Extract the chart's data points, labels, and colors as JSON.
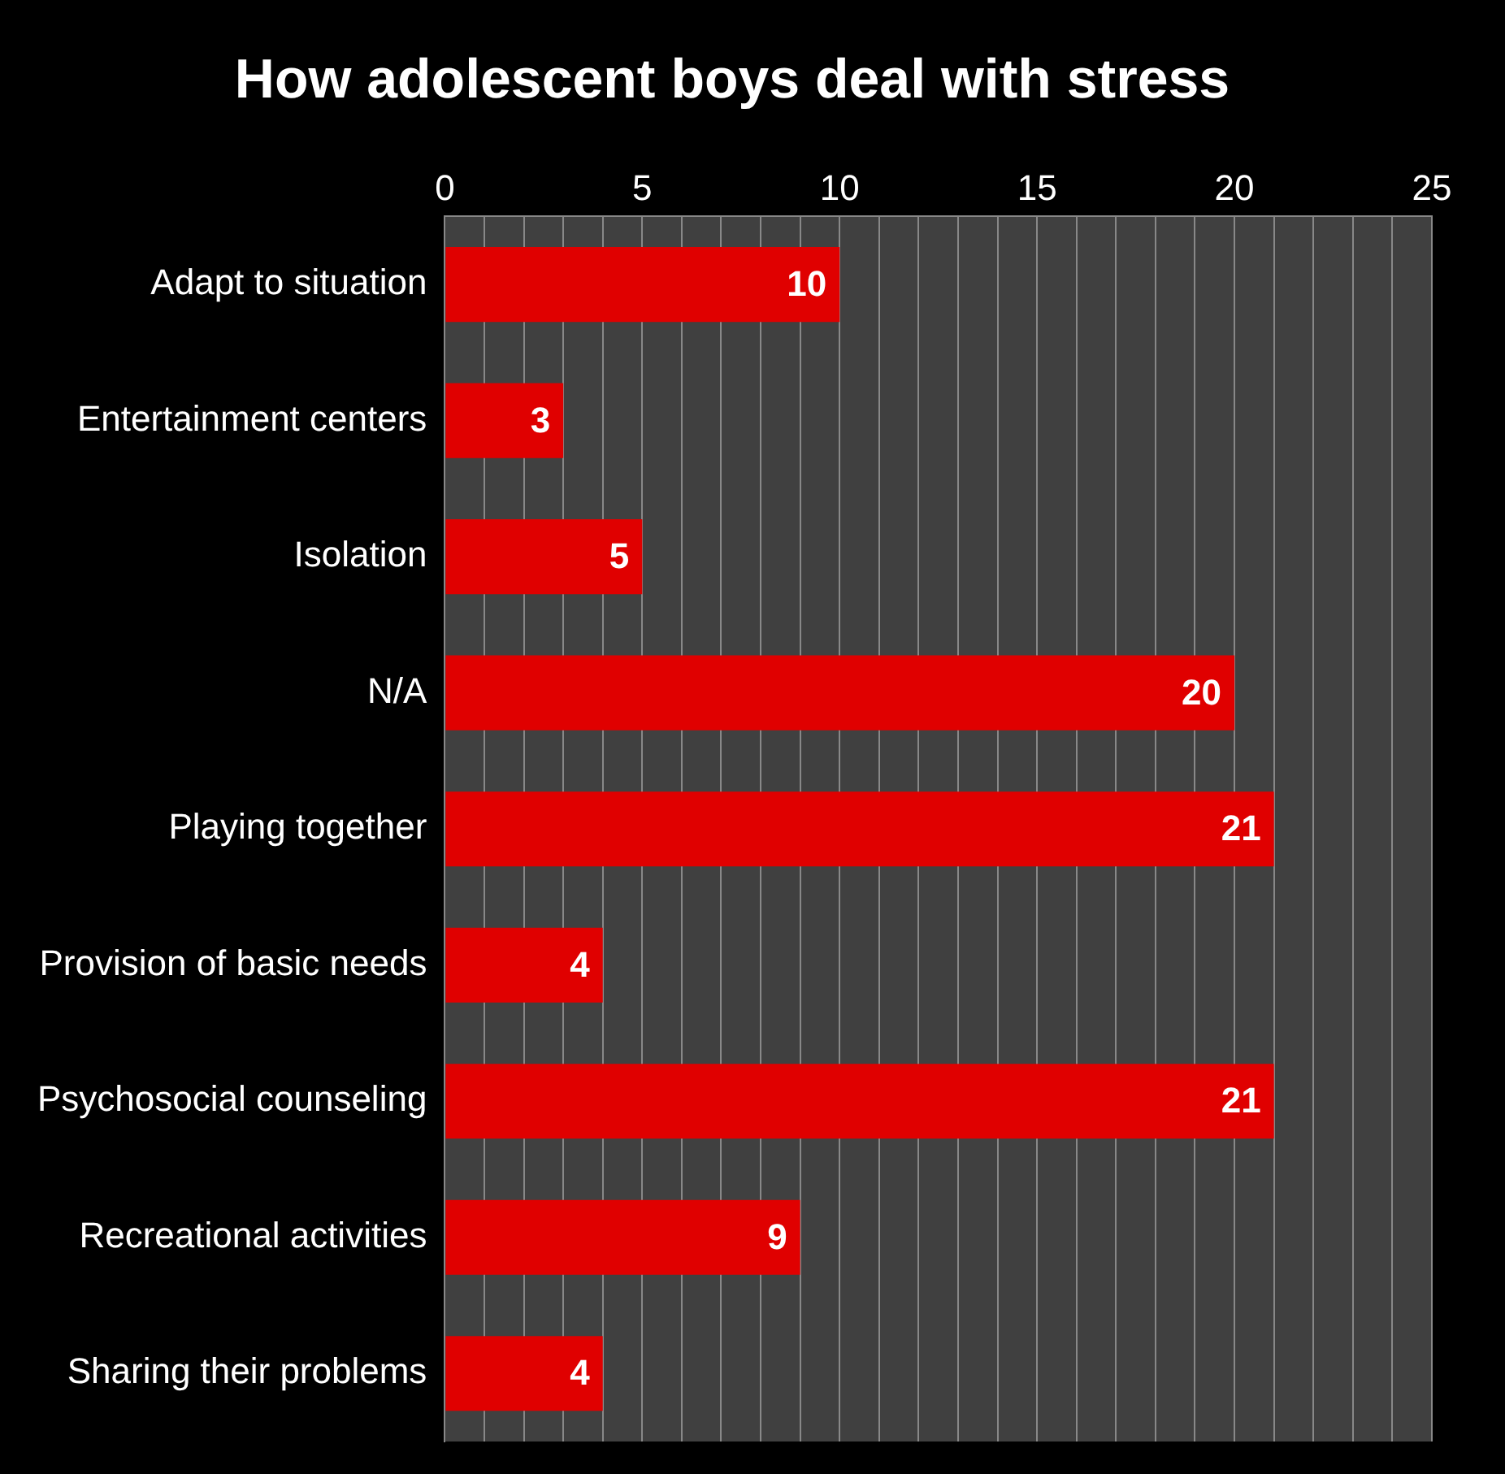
{
  "chart_data": {
    "type": "bar",
    "orientation": "horizontal",
    "title": "How adolescent boys deal with stress",
    "categories": [
      "Adapt to situation",
      "Entertainment centers",
      "Isolation",
      "N/A",
      "Playing together",
      "Provision of basic needs",
      "Psychosocial counseling",
      "Recreational activities",
      "Sharing their problems"
    ],
    "values": [
      10,
      3,
      5,
      20,
      21,
      4,
      21,
      9,
      4
    ],
    "color": "#e00000",
    "data_labels": true,
    "grid": "x",
    "xlim": [
      0,
      25
    ],
    "xticks": [
      0,
      {
        "value": 1,
        "label": null
      },
      {
        "value": 2,
        "label": null
      },
      {
        "value": 3,
        "label": null
      },
      {
        "value": 4,
        "label": null
      },
      5,
      {
        "value": 6,
        "label": null
      },
      {
        "value": 7,
        "label": null
      },
      {
        "value": 8,
        "label": null
      },
      {
        "value": 9,
        "label": null
      },
      10,
      {
        "value": 11,
        "label": null
      },
      {
        "value": 12,
        "label": null
      },
      {
        "value": 13,
        "label": null
      },
      {
        "value": 14,
        "label": null
      },
      15,
      {
        "value": 16,
        "label": null
      },
      {
        "value": 17,
        "label": null
      },
      {
        "value": 18,
        "label": null
      },
      {
        "value": 19,
        "label": null
      },
      20,
      {
        "value": 21,
        "label": null
      },
      {
        "value": 22,
        "label": null
      },
      {
        "value": 23,
        "label": null
      },
      {
        "value": 24,
        "label": null
      },
      25
    ]
  }
}
